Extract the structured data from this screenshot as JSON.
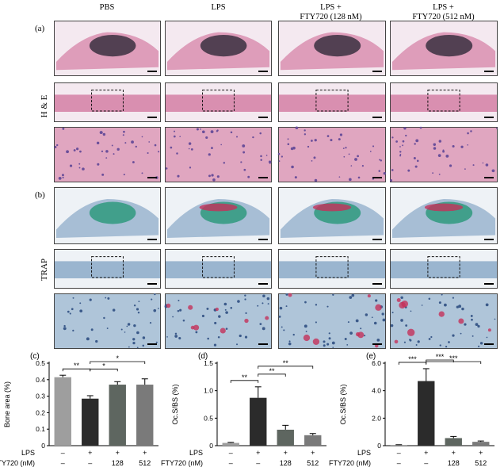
{
  "figure": {
    "column_headers": [
      "PBS",
      "LPS",
      "LPS +\nFTY720 (128 nM)",
      "LPS +\nFTY720 (512 nM)"
    ],
    "panel_labels": {
      "a": "(a)",
      "b": "(b)",
      "c": "(c)",
      "d": "(d)",
      "e": "(e)"
    },
    "row_labels": {
      "he": "H & E",
      "trap": "TRAP"
    },
    "colors": {
      "he_pink": "#d98fb0",
      "he_purple": "#6b4f9a",
      "trap_blue": "#9ab5cf",
      "trap_green": "#2f9a7e",
      "trap_red": "#c4315a"
    }
  },
  "chart_data": [
    {
      "type": "bar",
      "panel": "(c)",
      "categories": [
        "PBS",
        "LPS",
        "LPS+FTY720 128",
        "LPS+FTY720 512"
      ],
      "values": [
        0.415,
        0.285,
        0.37,
        0.37
      ],
      "errors": [
        0.012,
        0.018,
        0.018,
        0.035
      ],
      "ylabel": "Bone area (%)",
      "ylim": [
        0,
        0.5
      ],
      "yticks": [
        "0",
        "0.1",
        "0.2",
        "0.3",
        "0.4",
        "0.5"
      ],
      "bar_colors": [
        "#9e9e9e",
        "#2b2b2b",
        "#5e6660",
        "#7a7a7a"
      ],
      "row_lps": [
        "LPS",
        "–",
        "+",
        "+",
        "+"
      ],
      "row_fty": [
        "FTY720 (nM)",
        "–",
        "–",
        "128",
        "512"
      ],
      "significance": [
        {
          "from": 0,
          "to": 1,
          "label": "**"
        },
        {
          "from": 1,
          "to": 2,
          "label": "*"
        },
        {
          "from": 1,
          "to": 3,
          "label": "*"
        }
      ]
    },
    {
      "type": "bar",
      "panel": "(d)",
      "categories": [
        "PBS",
        "LPS",
        "LPS+FTY720 128",
        "LPS+FTY720 512"
      ],
      "values": [
        0.05,
        0.87,
        0.29,
        0.19
      ],
      "errors": [
        0.01,
        0.2,
        0.08,
        0.03
      ],
      "ylabel": "Oc.S/BS (%)",
      "ylim": [
        0,
        1.5
      ],
      "yticks": [
        "0",
        "0.5",
        "1.0",
        "1.5"
      ],
      "bar_colors": [
        "#9e9e9e",
        "#2b2b2b",
        "#5e6660",
        "#7a7a7a"
      ],
      "row_lps": [
        "LPS",
        "–",
        "+",
        "+",
        "+"
      ],
      "row_fty": [
        "FTY720 (nM)",
        "–",
        "–",
        "128",
        "512"
      ],
      "significance": [
        {
          "from": 0,
          "to": 1,
          "label": "**"
        },
        {
          "from": 1,
          "to": 2,
          "label": "**"
        },
        {
          "from": 1,
          "to": 3,
          "label": "**"
        }
      ]
    },
    {
      "type": "bar",
      "panel": "(e)",
      "categories": [
        "PBS",
        "LPS",
        "LPS+FTY720 128",
        "LPS+FTY720 512"
      ],
      "values": [
        0.05,
        4.7,
        0.55,
        0.28
      ],
      "errors": [
        0.02,
        0.9,
        0.12,
        0.06
      ],
      "ylabel": "Oc.S/BS (%)",
      "ylim": [
        0,
        6
      ],
      "yticks": [
        "0",
        "2.0",
        "4.0",
        "6.0"
      ],
      "bar_colors": [
        "#9e9e9e",
        "#2b2b2b",
        "#5e6660",
        "#7a7a7a"
      ],
      "row_lps": [
        "LPS",
        "–",
        "+",
        "+",
        "+"
      ],
      "row_fty": [
        "FTY720 (nM)",
        "–",
        "–",
        "128",
        "512"
      ],
      "significance": [
        {
          "from": 0,
          "to": 1,
          "label": "***"
        },
        {
          "from": 1,
          "to": 2,
          "label": "***"
        },
        {
          "from": 1,
          "to": 3,
          "label": "***"
        }
      ]
    }
  ]
}
